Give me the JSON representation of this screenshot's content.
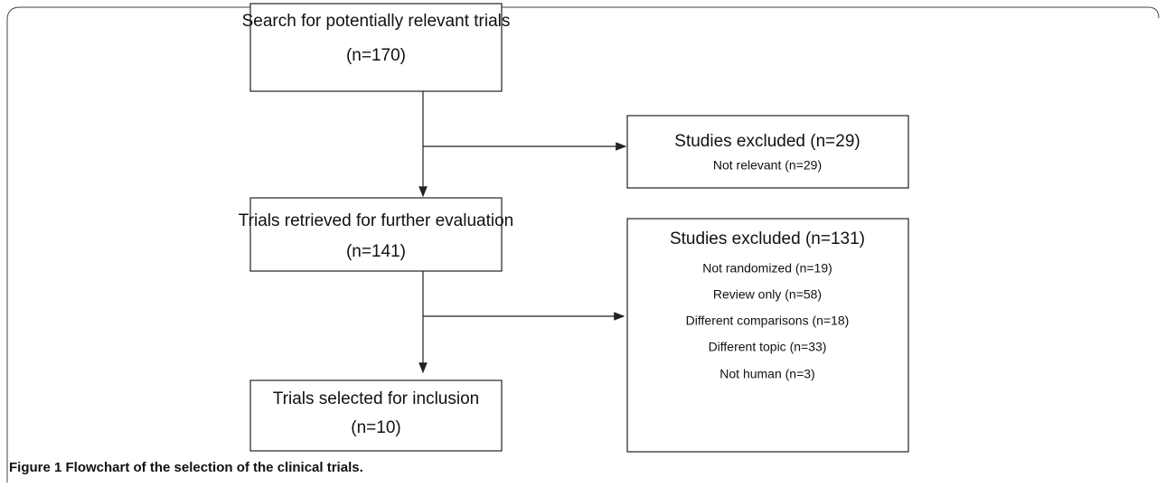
{
  "nodes": [
    {
      "lines": [
        "Search for potentially relevant trials",
        "(n=170)"
      ]
    },
    {
      "lines": [
        "Studies excluded (n=29)",
        "Not relevant (n=29)"
      ]
    },
    {
      "lines": [
        "Trials retrieved for further evaluation",
        "(n=141)"
      ]
    },
    {
      "lines": [
        "Studies excluded (n=131)",
        "Not randomized (n=19)",
        "Review only (n=58)",
        "Different comparisons (n=18)",
        "Different topic (n=33)",
        "Not human (n=3)"
      ]
    },
    {
      "lines": [
        "Trials selected for inclusion",
        "(n=10)"
      ]
    }
  ],
  "caption": "Figure 1 Flowchart of the selection of the clinical trials."
}
